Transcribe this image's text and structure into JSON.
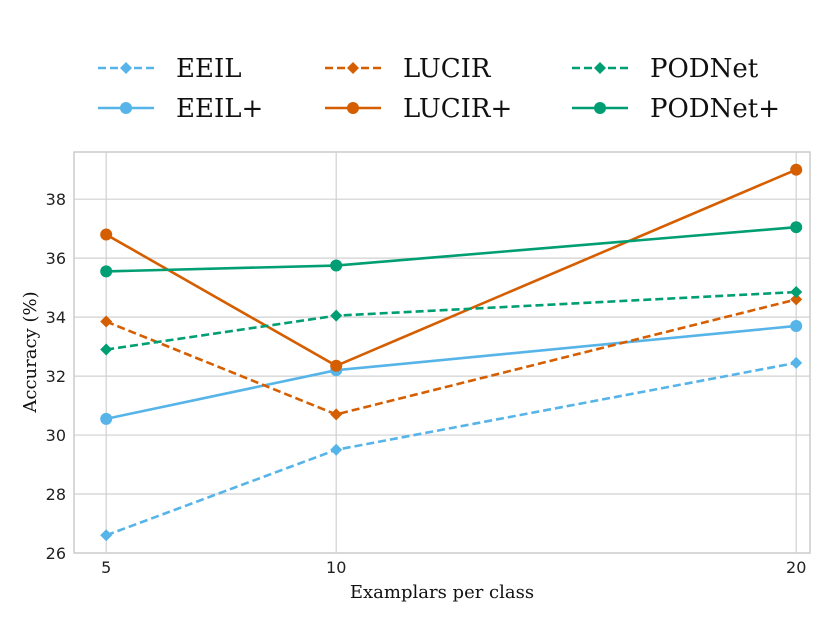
{
  "chart_data": {
    "type": "line",
    "xlabel": "Examplars per class",
    "ylabel": "Accuracy (%)",
    "x": [
      5,
      10,
      20
    ],
    "xticks": [
      "5",
      "10",
      "20"
    ],
    "ylim": [
      26,
      39.6
    ],
    "xlim": [
      4.3,
      20.3
    ],
    "yticks": [
      "26",
      "28",
      "30",
      "32",
      "34",
      "36",
      "38"
    ],
    "grid": true,
    "legend": "top, 3 columns",
    "series": [
      {
        "name": "EEIL",
        "values": [
          26.6,
          29.5,
          32.45
        ],
        "color": "#56b4e9",
        "dashed": true,
        "marker": "diamond"
      },
      {
        "name": "EEIL+",
        "values": [
          30.55,
          32.2,
          33.7
        ],
        "color": "#56b4e9",
        "dashed": false,
        "marker": "circle"
      },
      {
        "name": "LUCIR",
        "values": [
          33.85,
          30.7,
          34.6
        ],
        "color": "#d55e00",
        "dashed": true,
        "marker": "diamond"
      },
      {
        "name": "LUCIR+",
        "values": [
          36.8,
          32.35,
          39.0
        ],
        "color": "#d55e00",
        "dashed": false,
        "marker": "circle"
      },
      {
        "name": "PODNet",
        "values": [
          32.9,
          34.05,
          34.85
        ],
        "color": "#009e73",
        "dashed": true,
        "marker": "diamond"
      },
      {
        "name": "PODNet+",
        "values": [
          35.55,
          35.75,
          37.05
        ],
        "color": "#009e73",
        "dashed": false,
        "marker": "circle"
      }
    ]
  }
}
